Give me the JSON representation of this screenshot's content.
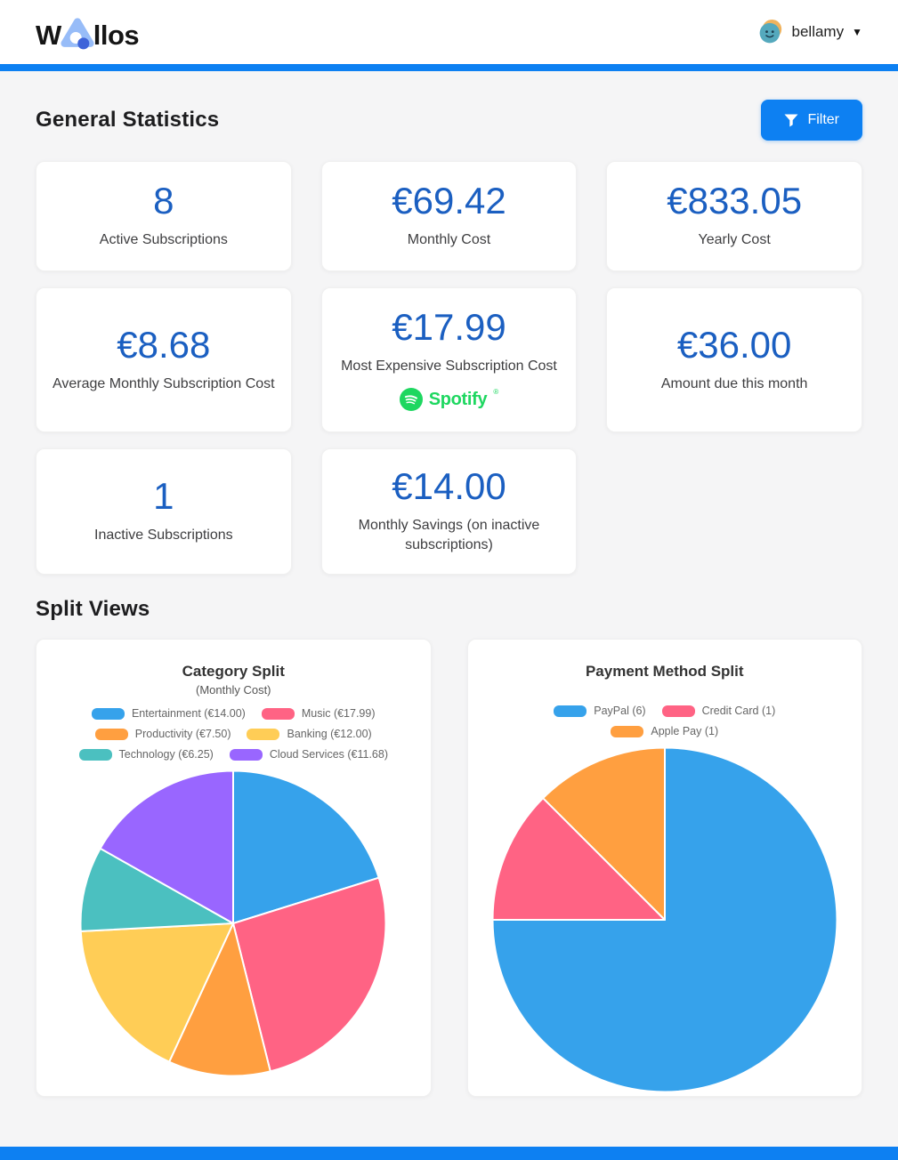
{
  "header": {
    "logo_w": "W",
    "logo_rest": "llos",
    "username": "bellamy",
    "caret": "▼"
  },
  "sections": {
    "general_statistics_title": "General Statistics",
    "filter_label": "Filter",
    "split_views_title": "Split Views"
  },
  "stats": [
    {
      "value": "8",
      "label": "Active Subscriptions"
    },
    {
      "value": "€69.42",
      "label": "Monthly Cost"
    },
    {
      "value": "€833.05",
      "label": "Yearly Cost"
    },
    {
      "value": "€8.68",
      "label": "Average Monthly Subscription Cost"
    },
    {
      "value": "€17.99",
      "label": "Most Expensive Subscription Cost",
      "logo": "Spotify",
      "logo_mark": "®"
    },
    {
      "value": "€36.00",
      "label": "Amount due this month"
    },
    {
      "value": "1",
      "label": "Inactive Subscriptions"
    },
    {
      "value": "€14.00",
      "label": "Monthly Savings (on inactive subscriptions)"
    }
  ],
  "colors": {
    "accent_blue": "#0d80f2",
    "stat_number_blue": "#1b5fc1",
    "spotify_green": "#1ed760",
    "page_background": "#f5f5f6",
    "card_background": "#ffffff"
  },
  "chart_data": [
    {
      "type": "pie",
      "title": "Category Split",
      "subtitle": "(Monthly Cost)",
      "labels": [
        "Entertainment",
        "Music",
        "Productivity",
        "Banking",
        "Technology",
        "Cloud Services"
      ],
      "values": [
        14.0,
        17.99,
        7.5,
        12.0,
        6.25,
        11.68
      ],
      "legend_labels": [
        "Entertainment (€14.00)",
        "Music (€17.99)",
        "Productivity (€7.50)",
        "Banking (€12.00)",
        "Technology (€6.25)",
        "Cloud Services (€11.68)"
      ],
      "colors": [
        "#36a2eb",
        "#ff6384",
        "#ff9f40",
        "#ffcd56",
        "#4bc0c0",
        "#9966ff"
      ],
      "legend_position": "top",
      "start_angle_deg": 0,
      "diameter": 346
    },
    {
      "type": "pie",
      "title": "Payment Method Split",
      "subtitle": "",
      "labels": [
        "PayPal",
        "Credit Card",
        "Apple Pay"
      ],
      "values": [
        6,
        1,
        1
      ],
      "legend_labels": [
        "PayPal (6)",
        "Credit Card (1)",
        "Apple Pay (1)"
      ],
      "colors": [
        "#36a2eb",
        "#ff6384",
        "#ff9f40"
      ],
      "legend_position": "top",
      "start_angle_deg": 0,
      "diameter": 390
    }
  ]
}
